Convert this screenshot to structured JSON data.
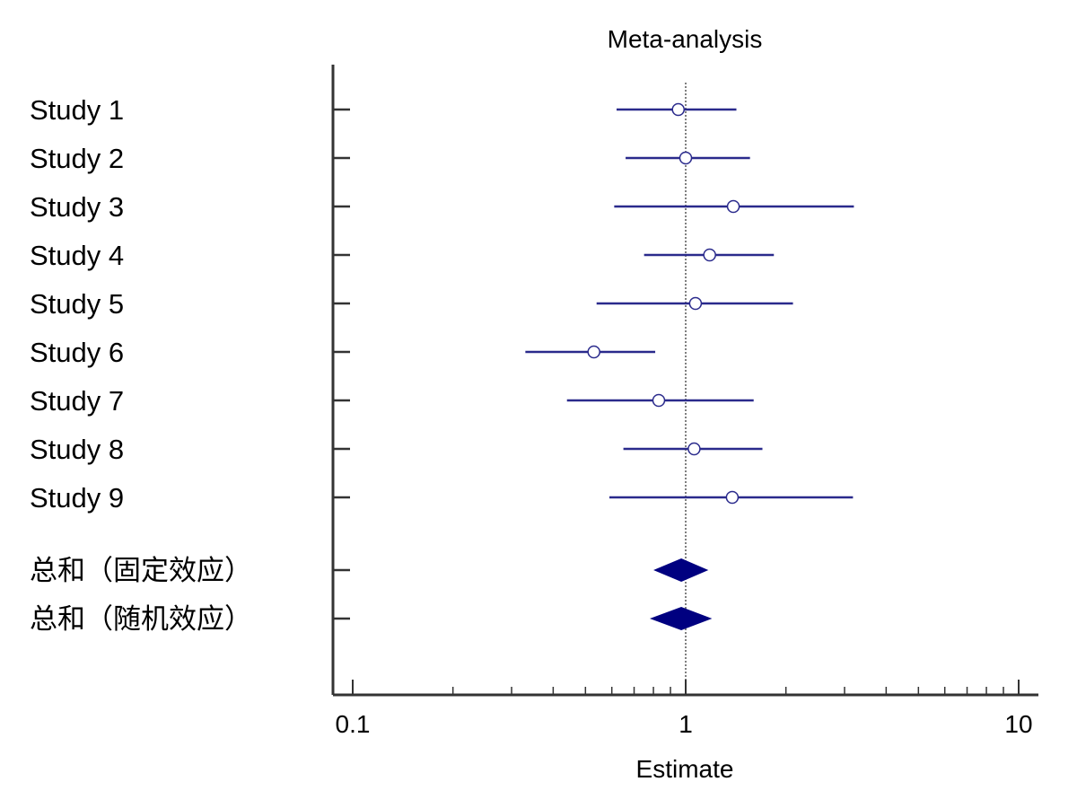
{
  "chart_data": {
    "type": "forest",
    "title": "Meta-analysis",
    "xlabel": "Estimate",
    "xscale": "log",
    "xlim": [
      0.09,
      12
    ],
    "xticks": [
      "0.1",
      "1",
      "10"
    ],
    "reference_line": 1,
    "studies": [
      {
        "label": "Study 1",
        "estimate": 0.95,
        "ci": [
          0.62,
          1.42
        ]
      },
      {
        "label": "Study 2",
        "estimate": 1.0,
        "ci": [
          0.66,
          1.56
        ]
      },
      {
        "label": "Study 3",
        "estimate": 1.39,
        "ci": [
          0.61,
          3.2
        ]
      },
      {
        "label": "Study 4",
        "estimate": 1.18,
        "ci": [
          0.75,
          1.84
        ]
      },
      {
        "label": "Study 5",
        "estimate": 1.07,
        "ci": [
          0.54,
          2.1
        ]
      },
      {
        "label": "Study 6",
        "estimate": 0.53,
        "ci": [
          0.33,
          0.81
        ]
      },
      {
        "label": "Study 7",
        "estimate": 0.83,
        "ci": [
          0.44,
          1.6
        ]
      },
      {
        "label": "Study 8",
        "estimate": 1.06,
        "ci": [
          0.65,
          1.7
        ]
      },
      {
        "label": "Study 9",
        "estimate": 1.38,
        "ci": [
          0.59,
          3.18
        ]
      }
    ],
    "pooled": [
      {
        "label": "总和（固定效应）",
        "estimate": 0.97,
        "ci": [
          0.8,
          1.17
        ]
      },
      {
        "label": "总和（随机效应）",
        "estimate": 0.97,
        "ci": [
          0.78,
          1.2
        ]
      }
    ],
    "colors": {
      "study": "#2a2a8c",
      "pooled": "#000080",
      "axis": "#333333"
    }
  }
}
